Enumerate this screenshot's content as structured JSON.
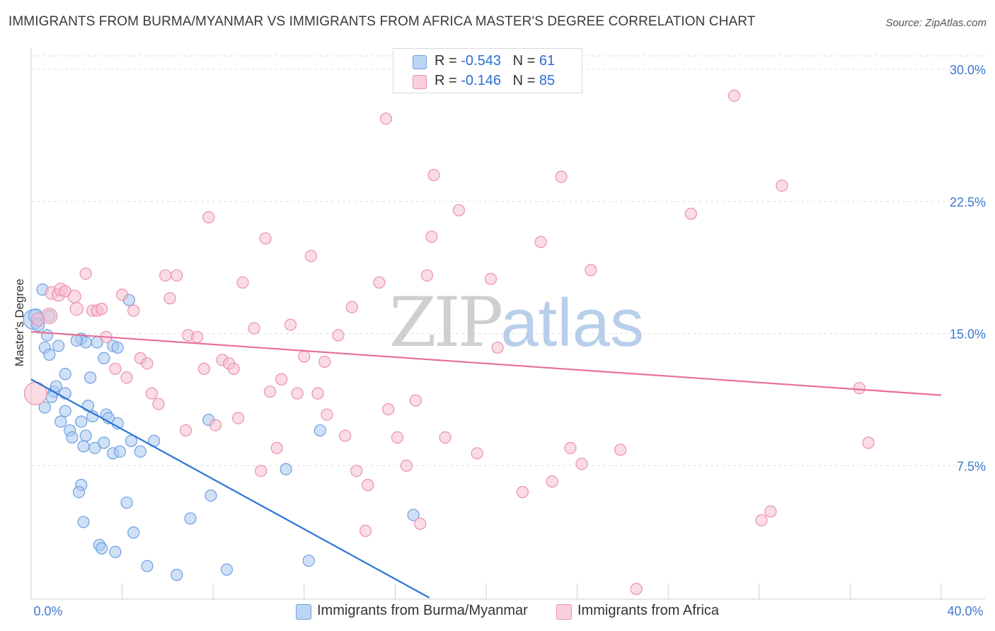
{
  "header": {
    "title": "IMMIGRANTS FROM BURMA/MYANMAR VS IMMIGRANTS FROM AFRICA MASTER'S DEGREE CORRELATION CHART",
    "source": "Source: ZipAtlas.com"
  },
  "watermark": {
    "zip": "ZIP",
    "atlas": "atlas"
  },
  "legend_top": {
    "rows": [
      {
        "r_label": "R = ",
        "r_value": "-0.543",
        "n_label": "N = ",
        "n_value": "61"
      },
      {
        "r_label": "R = ",
        "r_value": "-0.146",
        "n_label": "N = ",
        "n_value": "85"
      }
    ]
  },
  "legend_bottom": {
    "items": [
      {
        "label": "Immigrants from Burma/Myanmar"
      },
      {
        "label": "Immigrants from Africa"
      }
    ]
  },
  "colors": {
    "blue_fill": "#a9c8f0",
    "blue_stroke": "#6c9fe0",
    "blue_line": "#2b74d6",
    "pink_fill": "#f6bfd0",
    "pink_stroke": "#ec8fae",
    "pink_line": "#e8709a",
    "tick_label": "#3d78d1",
    "grid": "#dddddd"
  },
  "chart_data": {
    "type": "scatter",
    "title": "IMMIGRANTS FROM BURMA/MYANMAR VS IMMIGRANTS FROM AFRICA MASTER'S DEGREE CORRELATION CHART",
    "xlabel": "",
    "ylabel": "Master's Degree",
    "xlim": [
      0,
      40
    ],
    "ylim": [
      0,
      30.5
    ],
    "x_tick_labels": [
      "0.0%",
      "40.0%"
    ],
    "y_ticks": [
      7.5,
      15.0,
      22.5,
      30.0
    ],
    "y_tick_labels": [
      "7.5%",
      "15.0%",
      "22.5%",
      "30.0%"
    ],
    "grid": true,
    "legend_position": "top-center",
    "series": [
      {
        "name": "Immigrants from Burma/Myanmar",
        "color": "#a9c8f0",
        "trend": {
          "x": [
            0.0,
            17.5
          ],
          "y": [
            12.4,
            0.0
          ]
        },
        "points": [
          [
            0.1,
            15.8,
            14
          ],
          [
            0.2,
            16.0,
            10
          ],
          [
            0.3,
            15.5,
            9
          ],
          [
            0.5,
            17.5,
            8
          ],
          [
            0.8,
            16.0,
            8
          ],
          [
            0.7,
            14.9,
            8
          ],
          [
            0.6,
            14.2,
            8
          ],
          [
            0.8,
            13.8,
            8
          ],
          [
            1.2,
            14.3,
            8
          ],
          [
            1.0,
            11.7,
            8
          ],
          [
            1.1,
            12.0,
            8
          ],
          [
            0.9,
            11.4,
            8
          ],
          [
            1.5,
            11.6,
            8
          ],
          [
            1.5,
            12.7,
            8
          ],
          [
            0.6,
            10.8,
            8
          ],
          [
            1.5,
            10.6,
            8
          ],
          [
            1.3,
            10.0,
            8
          ],
          [
            1.7,
            9.5,
            8
          ],
          [
            1.8,
            9.1,
            8
          ],
          [
            2.2,
            10.0,
            8
          ],
          [
            2.5,
            10.9,
            8
          ],
          [
            2.6,
            12.5,
            8
          ],
          [
            2.7,
            10.3,
            8
          ],
          [
            2.4,
            9.2,
            8
          ],
          [
            2.3,
            8.6,
            8
          ],
          [
            2.8,
            8.5,
            8
          ],
          [
            3.2,
            8.8,
            8
          ],
          [
            3.3,
            10.4,
            8
          ],
          [
            3.4,
            10.2,
            8
          ],
          [
            3.8,
            9.9,
            8
          ],
          [
            3.6,
            8.2,
            8
          ],
          [
            3.9,
            8.3,
            8
          ],
          [
            4.4,
            8.9,
            8
          ],
          [
            4.8,
            8.3,
            8
          ],
          [
            5.4,
            8.9,
            8
          ],
          [
            2.9,
            14.5,
            8
          ],
          [
            3.2,
            13.6,
            8
          ],
          [
            3.6,
            14.3,
            8
          ],
          [
            3.8,
            14.2,
            8
          ],
          [
            4.3,
            16.9,
            8
          ],
          [
            2.2,
            14.7,
            8
          ],
          [
            2.4,
            14.5,
            8
          ],
          [
            2.2,
            6.4,
            8
          ],
          [
            2.1,
            6.0,
            8
          ],
          [
            2.3,
            4.3,
            8
          ],
          [
            3.0,
            3.0,
            8
          ],
          [
            3.1,
            2.8,
            8
          ],
          [
            3.7,
            2.6,
            8
          ],
          [
            4.2,
            5.4,
            8
          ],
          [
            4.5,
            3.7,
            8
          ],
          [
            5.1,
            1.8,
            8
          ],
          [
            6.4,
            1.3,
            8
          ],
          [
            7.0,
            4.5,
            8
          ],
          [
            7.8,
            10.1,
            8
          ],
          [
            7.9,
            5.8,
            8
          ],
          [
            8.6,
            1.6,
            8
          ],
          [
            11.2,
            7.3,
            8
          ],
          [
            12.2,
            2.1,
            8
          ],
          [
            12.7,
            9.5,
            8
          ],
          [
            16.8,
            4.7,
            8
          ],
          [
            2.0,
            14.6,
            8
          ]
        ]
      },
      {
        "name": "Immigrants from Africa",
        "color": "#f6bfd0",
        "trend": {
          "x": [
            0.0,
            40.0
          ],
          "y": [
            15.1,
            11.5
          ]
        },
        "points": [
          [
            0.2,
            11.6,
            16
          ],
          [
            0.8,
            16.0,
            11
          ],
          [
            0.3,
            15.8,
            9
          ],
          [
            0.9,
            17.3,
            9
          ],
          [
            1.2,
            17.2,
            9
          ],
          [
            1.3,
            17.5,
            9
          ],
          [
            1.5,
            17.4,
            8
          ],
          [
            1.9,
            17.1,
            9
          ],
          [
            2.0,
            16.4,
            9
          ],
          [
            2.4,
            18.4,
            8
          ],
          [
            2.7,
            16.3,
            8
          ],
          [
            2.9,
            16.3,
            8
          ],
          [
            3.1,
            16.4,
            8
          ],
          [
            3.3,
            14.8,
            8
          ],
          [
            3.7,
            13.0,
            8
          ],
          [
            4.0,
            17.2,
            8
          ],
          [
            4.2,
            12.5,
            8
          ],
          [
            4.5,
            16.3,
            8
          ],
          [
            4.8,
            13.6,
            8
          ],
          [
            5.1,
            13.3,
            8
          ],
          [
            5.3,
            11.6,
            8
          ],
          [
            5.6,
            11.0,
            8
          ],
          [
            5.9,
            18.3,
            8
          ],
          [
            6.1,
            17.0,
            8
          ],
          [
            6.4,
            18.3,
            8
          ],
          [
            6.8,
            9.5,
            8
          ],
          [
            6.9,
            14.9,
            8
          ],
          [
            7.3,
            14.8,
            8
          ],
          [
            7.6,
            13.0,
            8
          ],
          [
            7.8,
            21.6,
            8
          ],
          [
            8.1,
            9.8,
            8
          ],
          [
            8.4,
            13.5,
            8
          ],
          [
            8.7,
            13.3,
            8
          ],
          [
            8.9,
            13.0,
            8
          ],
          [
            9.1,
            10.2,
            8
          ],
          [
            9.3,
            17.9,
            8
          ],
          [
            9.8,
            15.3,
            8
          ],
          [
            10.1,
            7.2,
            8
          ],
          [
            10.3,
            20.4,
            8
          ],
          [
            10.5,
            11.7,
            8
          ],
          [
            10.8,
            8.5,
            8
          ],
          [
            11.0,
            12.4,
            8
          ],
          [
            11.4,
            15.5,
            8
          ],
          [
            11.7,
            11.6,
            8
          ],
          [
            12.0,
            13.7,
            8
          ],
          [
            12.3,
            19.4,
            8
          ],
          [
            12.6,
            11.6,
            8
          ],
          [
            12.9,
            13.4,
            8
          ],
          [
            13.0,
            10.4,
            8
          ],
          [
            13.5,
            14.9,
            8
          ],
          [
            13.8,
            9.2,
            8
          ],
          [
            14.1,
            16.5,
            8
          ],
          [
            14.3,
            7.2,
            8
          ],
          [
            14.7,
            3.8,
            8
          ],
          [
            14.8,
            6.4,
            8
          ],
          [
            15.3,
            17.9,
            8
          ],
          [
            15.6,
            27.2,
            8
          ],
          [
            15.7,
            10.7,
            8
          ],
          [
            16.1,
            9.1,
            8
          ],
          [
            16.5,
            7.5,
            8
          ],
          [
            16.9,
            11.2,
            8
          ],
          [
            17.1,
            4.2,
            8
          ],
          [
            17.4,
            18.3,
            8
          ],
          [
            17.6,
            20.5,
            8
          ],
          [
            17.7,
            24.0,
            8
          ],
          [
            18.2,
            9.1,
            8
          ],
          [
            18.8,
            22.0,
            8
          ],
          [
            19.6,
            8.2,
            8
          ],
          [
            20.2,
            18.1,
            8
          ],
          [
            20.5,
            14.2,
            8
          ],
          [
            21.6,
            6.0,
            8
          ],
          [
            22.4,
            20.2,
            8
          ],
          [
            22.9,
            6.6,
            8
          ],
          [
            23.3,
            23.9,
            8
          ],
          [
            23.7,
            8.5,
            8
          ],
          [
            24.2,
            7.6,
            8
          ],
          [
            24.6,
            18.6,
            8
          ],
          [
            25.9,
            8.4,
            8
          ],
          [
            26.6,
            0.5,
            8
          ],
          [
            29.0,
            21.8,
            8
          ],
          [
            32.1,
            4.4,
            8
          ],
          [
            32.5,
            4.9,
            8
          ],
          [
            33.0,
            23.4,
            8
          ],
          [
            36.4,
            11.9,
            8
          ],
          [
            36.8,
            8.8,
            8
          ],
          [
            30.9,
            28.5,
            8
          ]
        ]
      }
    ]
  }
}
